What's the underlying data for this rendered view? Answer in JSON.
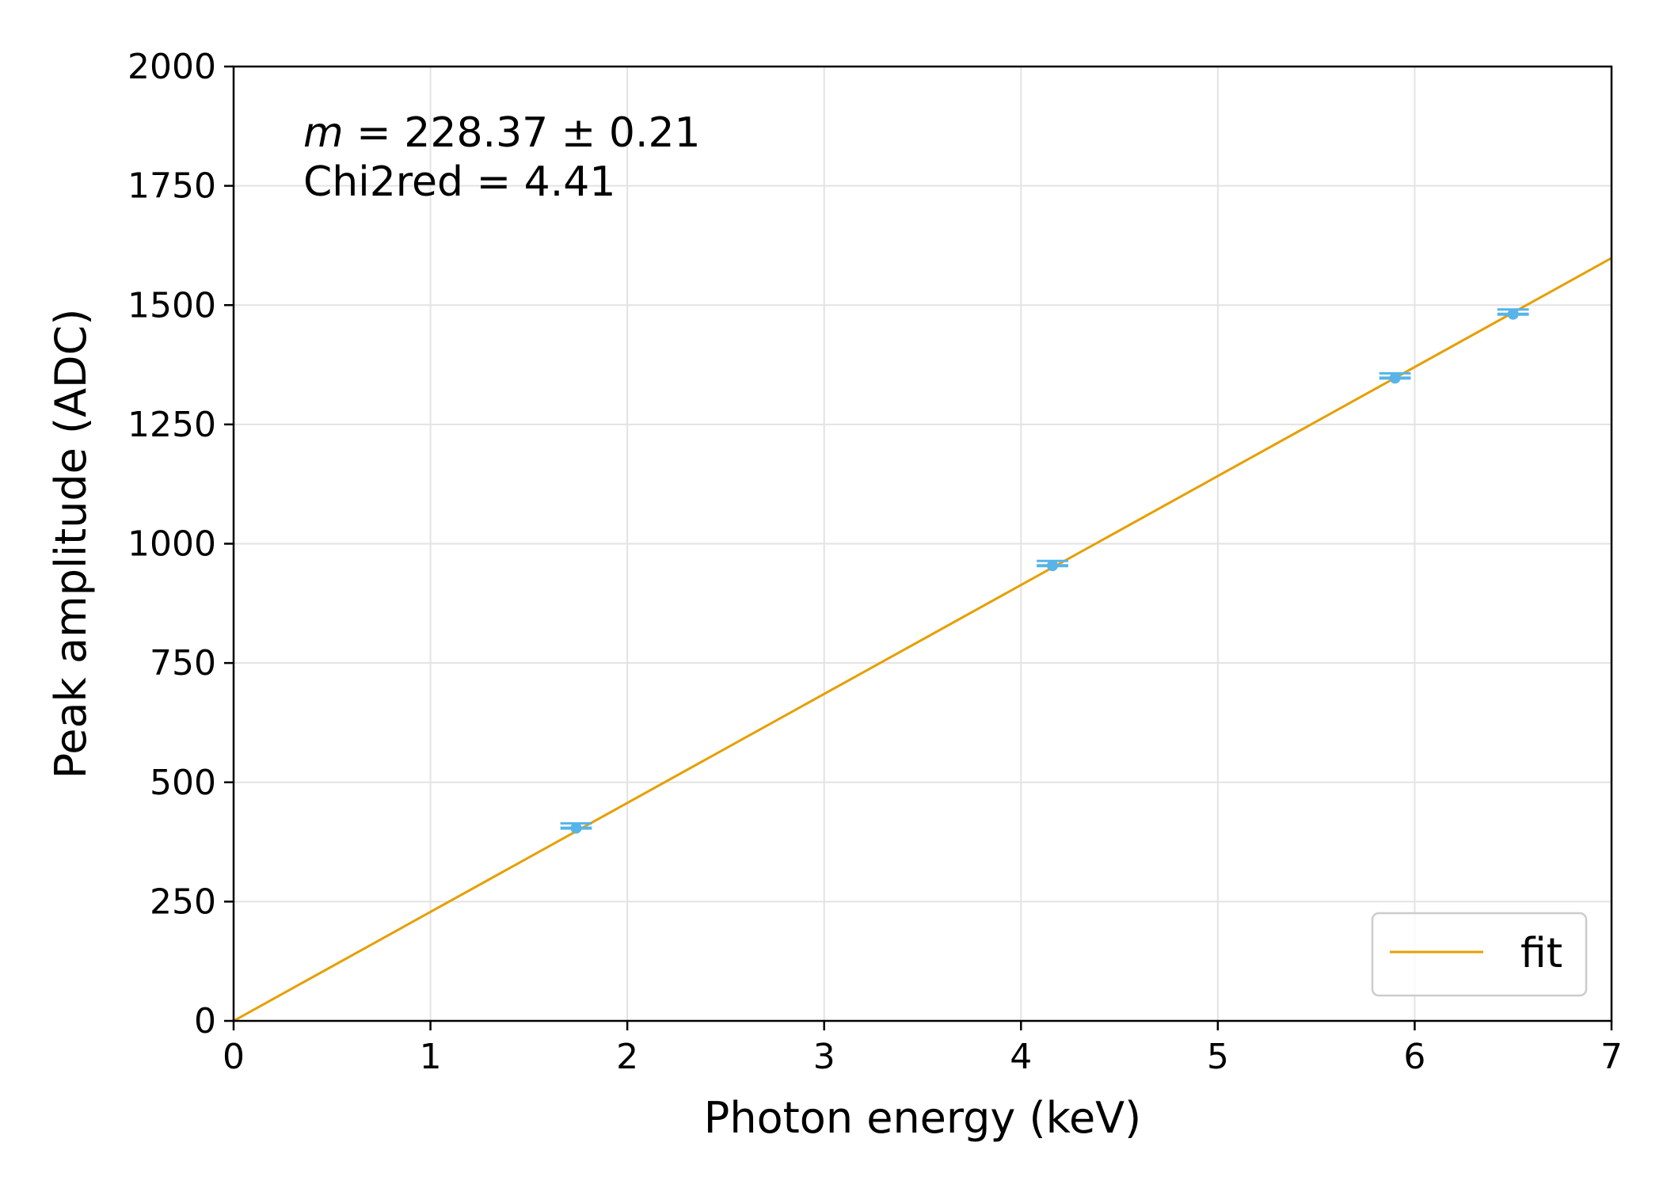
{
  "chart_data": {
    "type": "scatter",
    "xlabel": "Photon energy (keV)",
    "ylabel": "Peak amplitude (ADC)",
    "xlim": [
      0,
      7
    ],
    "ylim": [
      0,
      2000
    ],
    "xticks": [
      0,
      1,
      2,
      3,
      4,
      5,
      6,
      7
    ],
    "yticks": [
      0,
      250,
      500,
      750,
      1000,
      1250,
      1500,
      1750,
      2000
    ],
    "grid": true,
    "legend_position": "bottom-right",
    "annotation": {
      "m_symbol": "m",
      "m_text": " = 228.37 ± 0.21",
      "chi2_text": "Chi2red = 4.41"
    },
    "series": [
      {
        "kind": "errorbar",
        "color": "#56b4e9",
        "points": [
          {
            "x": 1.74,
            "y": 404,
            "xerr": 0.08
          },
          {
            "x": 4.16,
            "y": 954,
            "xerr": 0.08
          },
          {
            "x": 5.9,
            "y": 1347,
            "xerr": 0.08
          },
          {
            "x": 6.5,
            "y": 1481,
            "xerr": 0.08
          }
        ]
      },
      {
        "kind": "line",
        "name": "fit",
        "color": "#e69f00",
        "slope": 228.37,
        "intercept": 0
      }
    ]
  }
}
